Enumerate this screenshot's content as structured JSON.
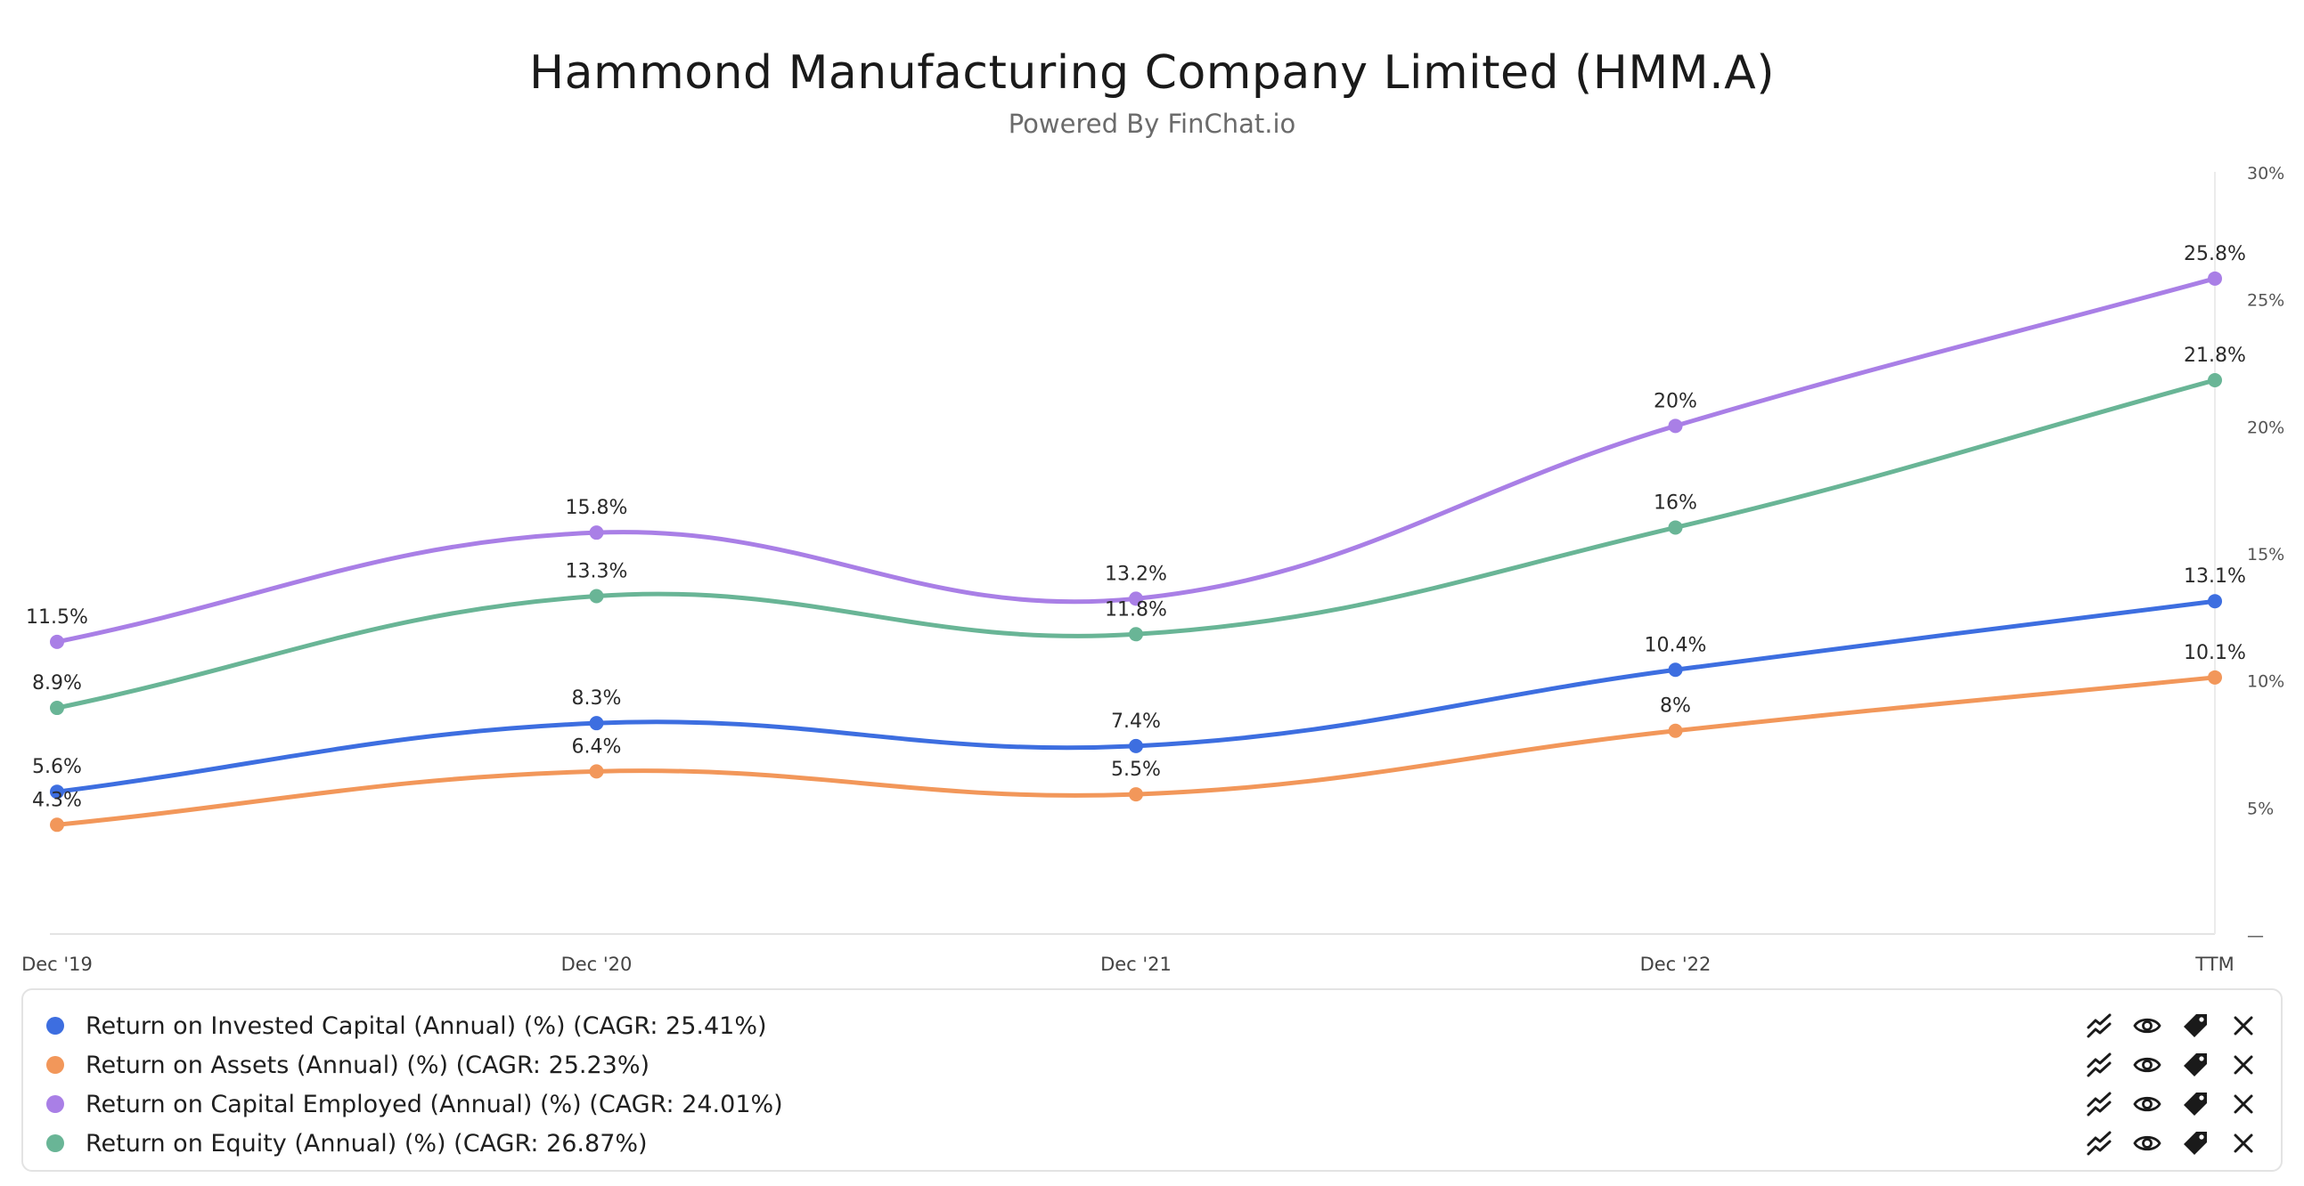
{
  "header": {
    "title": "Hammond Manufacturing Company Limited (HMM.A)",
    "subtitle": "Powered By FinChat.io"
  },
  "chart_data": {
    "type": "line",
    "title": "Hammond Manufacturing Company Limited (HMM.A)",
    "subtitle": "Powered By FinChat.io",
    "categories": [
      "Dec '19",
      "Dec '20",
      "Dec '21",
      "Dec '22",
      "TTM"
    ],
    "y_axis": {
      "position": "right",
      "range": [
        0,
        30
      ],
      "ticks": [
        0,
        5,
        10,
        15,
        20,
        25,
        30
      ],
      "tick_labels": [
        "—",
        "5%",
        "10%",
        "15%",
        "20%",
        "25%",
        "30%"
      ]
    },
    "grid": false,
    "legend_position": "bottom",
    "series": [
      {
        "name": "Return on Invested Capital (Annual) (%) (CAGR: 25.41%)",
        "color": "#3d6ee0",
        "values": [
          5.6,
          8.3,
          7.4,
          10.4,
          13.1
        ],
        "labels": [
          "5.6%",
          "8.3%",
          "7.4%",
          "10.4%",
          "13.1%"
        ]
      },
      {
        "name": "Return on Assets (Annual) (%) (CAGR: 25.23%)",
        "color": "#f2975a",
        "values": [
          4.3,
          6.4,
          5.5,
          8,
          10.1
        ],
        "labels": [
          "4.3%",
          "6.4%",
          "5.5%",
          "8%",
          "10.1%"
        ]
      },
      {
        "name": "Return on Capital Employed (Annual) (%) (CAGR: 24.01%)",
        "color": "#a97fe6",
        "values": [
          11.5,
          15.8,
          13.2,
          20,
          25.8
        ],
        "labels": [
          "11.5%",
          "15.8%",
          "13.2%",
          "20%",
          "25.8%"
        ]
      },
      {
        "name": "Return on Equity (Annual) (%) (CAGR: 26.87%)",
        "color": "#69b596",
        "values": [
          8.9,
          13.3,
          11.8,
          16,
          21.8
        ],
        "labels": [
          "8.9%",
          "13.3%",
          "11.8%",
          "16%",
          "21.8%"
        ]
      }
    ]
  },
  "legend": {
    "action_icons": [
      "trend-icon",
      "eye-icon",
      "tag-icon",
      "close-icon"
    ]
  }
}
